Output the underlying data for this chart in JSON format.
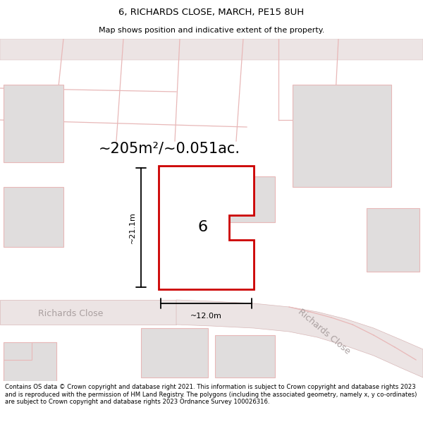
{
  "title": "6, RICHARDS CLOSE, MARCH, PE15 8UH",
  "subtitle": "Map shows position and indicative extent of the property.",
  "area_text": "~205m²/~0.051ac.",
  "label_number": "6",
  "dim_height": "~21.1m",
  "dim_width": "~12.0m",
  "street_label_left": "Richards Close",
  "street_label_right": "Richards Close",
  "footer": "Contains OS data © Crown copyright and database right 2021. This information is subject to Crown copyright and database rights 2023 and is reproduced with the permission of\nHM Land Registry. The polygons (including the associated geometry, namely x, y\nco-ordinates) are subject to Crown copyright and database rights 2023 Ordnance Survey\n100026316.",
  "bg_color": "#ffffff",
  "plot_fill": "#ffffff",
  "plot_stroke": "#cc0000",
  "building_fill": "#e0dddd",
  "faint_line": "#e8b8b8",
  "road_fill": "#ece4e4",
  "road_stroke": "#d8b8b8"
}
